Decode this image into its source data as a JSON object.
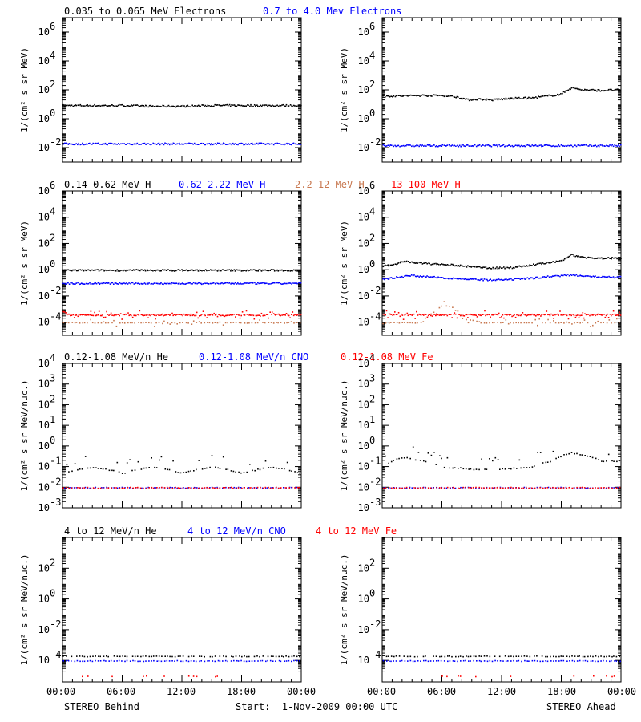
{
  "colors": {
    "black": "#000000",
    "blue": "#0000ff",
    "salmon": "#c87850",
    "red": "#ff0000"
  },
  "rows": [
    {
      "legend": [
        {
          "text": "0.035 to 0.065 MeV Electrons",
          "color": "#000000"
        },
        {
          "text": "0.7 to 4.0 Mev Electrons",
          "color": "#0000ff"
        }
      ],
      "ylabel": "1/(cm² s sr MeV)"
    },
    {
      "legend": [
        {
          "text": "0.14-0.62 MeV H",
          "color": "#000000"
        },
        {
          "text": "0.62-2.22 MeV H",
          "color": "#0000ff"
        },
        {
          "text": "2.2-12 MeV H",
          "color": "#c87850"
        },
        {
          "text": "13-100 MeV H",
          "color": "#ff0000"
        }
      ],
      "ylabel": "1/(cm² s sr MeV)"
    },
    {
      "legend": [
        {
          "text": "0.12-1.08 MeV/n He",
          "color": "#000000"
        },
        {
          "text": "0.12-1.08 MeV/n CNO",
          "color": "#0000ff"
        },
        {
          "text": "0.12-1.08 MeV Fe",
          "color": "#ff0000"
        }
      ],
      "ylabel": "1/(cm² s sr MeV/nuc.)"
    },
    {
      "legend": [
        {
          "text": "4 to 12 MeV/n He",
          "color": "#000000"
        },
        {
          "text": "4 to 12 MeV/n CNO",
          "color": "#0000ff"
        },
        {
          "text": "4 to 12 MeV Fe",
          "color": "#ff0000"
        }
      ],
      "ylabel": "1/(cm² s sr MeV/nuc.)"
    }
  ],
  "x_ticks": [
    "00:00",
    "06:00",
    "12:00",
    "18:00",
    "00:00"
  ],
  "footer": {
    "left": "STEREO Behind",
    "center": "Start:  1-Nov-2009 00:00 UTC",
    "right": "STEREO Ahead"
  },
  "chart_data": [
    {
      "type": "scatter",
      "panel": "electrons-behind",
      "x_unit": "hours",
      "xlim": [
        0,
        24
      ],
      "ylog": true,
      "ylim_exp": [
        -3,
        7
      ],
      "yticks_exp": [
        -2,
        0,
        2,
        4,
        6
      ],
      "series": [
        {
          "name": "0.035 to 0.065 MeV Electrons",
          "color": "#000000",
          "y": [
            9,
            9,
            9,
            8,
            8,
            9,
            9,
            9,
            9
          ]
        },
        {
          "name": "0.7 to 4.0 Mev Electrons",
          "color": "#0000ff",
          "y": [
            0.02,
            0.02,
            0.02,
            0.02,
            0.02,
            0.02,
            0.02,
            0.02,
            0.02
          ]
        }
      ]
    },
    {
      "type": "scatter",
      "panel": "electrons-ahead",
      "x_unit": "hours",
      "xlim": [
        0,
        24
      ],
      "ylog": true,
      "ylim_exp": [
        -3,
        7
      ],
      "yticks_exp": [
        -2,
        0,
        2,
        4,
        6
      ],
      "series": [
        {
          "x": [
            0,
            2,
            4,
            6,
            7.5,
            8.5,
            9.5,
            11,
            13,
            15,
            17,
            18,
            19,
            20,
            22,
            24
          ],
          "name": "0.035 to 0.065 MeV Electrons",
          "color": "#000000",
          "y": [
            40,
            42,
            45,
            45,
            35,
            22,
            25,
            22,
            28,
            30,
            45,
            55,
            150,
            110,
            100,
            110
          ]
        },
        {
          "name": "0.7 to 4.0 Mev Electrons",
          "color": "#0000ff",
          "y": [
            0.015,
            0.015,
            0.015,
            0.015,
            0.015,
            0.015,
            0.015,
            0.015,
            0.015
          ]
        }
      ]
    },
    {
      "type": "scatter",
      "panel": "protons-behind",
      "x_unit": "hours",
      "xlim": [
        0,
        24
      ],
      "ylog": true,
      "ylim_exp": [
        -5,
        6
      ],
      "yticks_exp": [
        -4,
        -2,
        0,
        2,
        4,
        6
      ],
      "series": [
        {
          "name": "0.14-0.62 MeV H",
          "color": "#000000",
          "y": [
            1,
            1,
            1,
            1,
            1,
            1,
            1,
            1,
            1
          ]
        },
        {
          "name": "0.62-2.22 MeV H",
          "color": "#0000ff",
          "y": [
            0.1,
            0.1,
            0.1,
            0.1,
            0.1,
            0.1,
            0.1,
            0.1,
            0.1
          ]
        },
        {
          "name": "2.2-12 MeV H",
          "color": "#c87850",
          "y": [
            0.0001,
            0.0001,
            0.0001,
            0.0001,
            0.0001,
            0.0001,
            0.0001,
            0.0001,
            0.0001
          ]
        },
        {
          "name": "13-100 MeV H",
          "color": "#ff0000",
          "y": [
            0.0004,
            0.0004,
            0.0004,
            0.0004,
            0.0004,
            0.0004,
            0.0004,
            0.0004,
            0.0004
          ]
        }
      ]
    },
    {
      "type": "scatter",
      "panel": "protons-ahead",
      "x_unit": "hours",
      "xlim": [
        0,
        24
      ],
      "ylog": true,
      "ylim_exp": [
        -5,
        6
      ],
      "yticks_exp": [
        -4,
        -2,
        0,
        2,
        4,
        6
      ],
      "series": [
        {
          "x": [
            0,
            1.5,
            2,
            3,
            5,
            7,
            9,
            11,
            13,
            15,
            17,
            18,
            19,
            20,
            22,
            24
          ],
          "name": "0.14-0.62 MeV H",
          "color": "#000000",
          "y": [
            2,
            3,
            5,
            4,
            3,
            2.5,
            1.8,
            1.5,
            1.6,
            2.5,
            4,
            5,
            15,
            10,
            8,
            9
          ]
        },
        {
          "x": [
            0,
            1.5,
            3,
            5,
            7,
            9,
            11,
            13,
            15,
            17,
            19,
            20,
            22,
            24
          ],
          "name": "0.62-2.22 MeV H",
          "color": "#0000ff",
          "y": [
            0.2,
            0.3,
            0.4,
            0.3,
            0.25,
            0.2,
            0.18,
            0.2,
            0.25,
            0.35,
            0.45,
            0.4,
            0.3,
            0.3
          ]
        },
        {
          "x": [
            0,
            2,
            4,
            5,
            5.5,
            6,
            6.5,
            7,
            7.5,
            8,
            10,
            14,
            18,
            24
          ],
          "name": "2.2-12 MeV H",
          "color": "#c87850",
          "y": [
            0.0001,
            0.0001,
            0.0001,
            0.0005,
            0.001,
            0.002,
            0.002,
            0.0015,
            0.0008,
            0.0002,
            0.0001,
            0.0001,
            0.0001,
            0.0001
          ]
        },
        {
          "name": "13-100 MeV H",
          "color": "#ff0000",
          "y": [
            0.0004,
            0.0004,
            0.0004,
            0.0004,
            0.0004,
            0.0004,
            0.0004,
            0.0004,
            0.0004
          ]
        }
      ]
    },
    {
      "type": "scatter",
      "panel": "ions-low-behind",
      "x_unit": "hours",
      "xlim": [
        0,
        24
      ],
      "ylog": true,
      "ylim_exp": [
        -3,
        4
      ],
      "yticks_exp": [
        -3,
        -2,
        -1,
        0,
        1,
        2,
        3,
        4
      ],
      "series": [
        {
          "name": "0.12-1.08 MeV/n He",
          "color": "#000000",
          "y": [
            0.05,
            0.1,
            0.05,
            0.1,
            0.05,
            0.1,
            0.05,
            0.1,
            0.05
          ]
        },
        {
          "name": "0.12-1.08 MeV/n CNO",
          "color": "#0000ff",
          "y": [
            0.01,
            0.01,
            0.01,
            0.01,
            0.01,
            0.01,
            0.01,
            0.01,
            0.01
          ]
        },
        {
          "name": "0.12-1.08 MeV Fe",
          "color": "#ff0000",
          "y": [
            0.01,
            0.01,
            0.01,
            0.01,
            0.01,
            0.01,
            0.01,
            0.01,
            0.01
          ]
        }
      ]
    },
    {
      "type": "scatter",
      "panel": "ions-low-ahead",
      "x_unit": "hours",
      "xlim": [
        0,
        24
      ],
      "ylog": true,
      "ylim_exp": [
        -3,
        4
      ],
      "yticks_exp": [
        -3,
        -2,
        -1,
        0,
        1,
        2,
        3,
        4
      ],
      "series": [
        {
          "x": [
            0,
            2,
            4,
            6,
            9,
            12,
            15,
            17,
            19,
            20,
            22,
            24
          ],
          "name": "0.12-1.08 MeV/n He",
          "color": "#000000",
          "y": [
            0.1,
            0.3,
            0.2,
            0.1,
            0.08,
            0.08,
            0.1,
            0.2,
            0.5,
            0.4,
            0.2,
            0.2
          ]
        },
        {
          "name": "0.12-1.08 MeV/n CNO",
          "color": "#0000ff",
          "y": [
            0.01,
            0.01,
            0.01,
            0.01,
            0.01,
            0.01,
            0.01,
            0.01,
            0.01
          ]
        },
        {
          "name": "0.12-1.08 MeV Fe",
          "color": "#ff0000",
          "y": [
            0.01,
            0.01,
            0.01,
            0.01,
            0.01,
            0.01,
            0.01,
            0.01,
            0.01
          ]
        }
      ]
    },
    {
      "type": "scatter",
      "panel": "ions-high-behind",
      "x_unit": "hours",
      "xlim": [
        0,
        24
      ],
      "ylog": true,
      "ylim_exp": [
        -5.4,
        4
      ],
      "yticks_exp": [
        -4,
        -2,
        0,
        2
      ],
      "series": [
        {
          "name": "4 to 12 MeV/n He",
          "color": "#000000",
          "y": [
            0.0002,
            0.0002,
            0.0002,
            0.0002,
            0.0002,
            0.0002,
            0.0002,
            0.0002,
            0.0002
          ]
        },
        {
          "name": "4 to 12 MeV/n CNO",
          "color": "#0000ff",
          "y": [
            0.0001,
            0.0001,
            0.0001,
            0.0001,
            0.0001,
            0.0001,
            0.0001,
            0.0001,
            0.0001
          ]
        },
        {
          "name": "4 to 12 MeV Fe",
          "color": "#ff0000",
          "y": [
            1e-05,
            1e-05,
            1e-05,
            1e-05,
            1e-05,
            1e-05,
            1e-05,
            1e-05,
            1e-05
          ]
        }
      ]
    },
    {
      "type": "scatter",
      "panel": "ions-high-ahead",
      "x_unit": "hours",
      "xlim": [
        0,
        24
      ],
      "ylog": true,
      "ylim_exp": [
        -5.4,
        4
      ],
      "yticks_exp": [
        -4,
        -2,
        0,
        2
      ],
      "series": [
        {
          "name": "4 to 12 MeV/n He",
          "color": "#000000",
          "y": [
            0.0002,
            0.0002,
            0.0002,
            0.0002,
            0.0002,
            0.0002,
            0.0002,
            0.0002,
            0.0002
          ]
        },
        {
          "name": "4 to 12 MeV/n CNO",
          "color": "#0000ff",
          "y": [
            0.0001,
            0.0001,
            0.0001,
            0.0001,
            0.0001,
            0.0001,
            0.0001,
            0.0001,
            0.0001
          ]
        },
        {
          "name": "4 to 12 MeV Fe",
          "color": "#ff0000",
          "y": [
            1e-05,
            1e-05,
            1e-05,
            1e-05,
            1e-05,
            1e-05,
            1e-05,
            1e-05,
            1e-05
          ]
        }
      ]
    }
  ]
}
